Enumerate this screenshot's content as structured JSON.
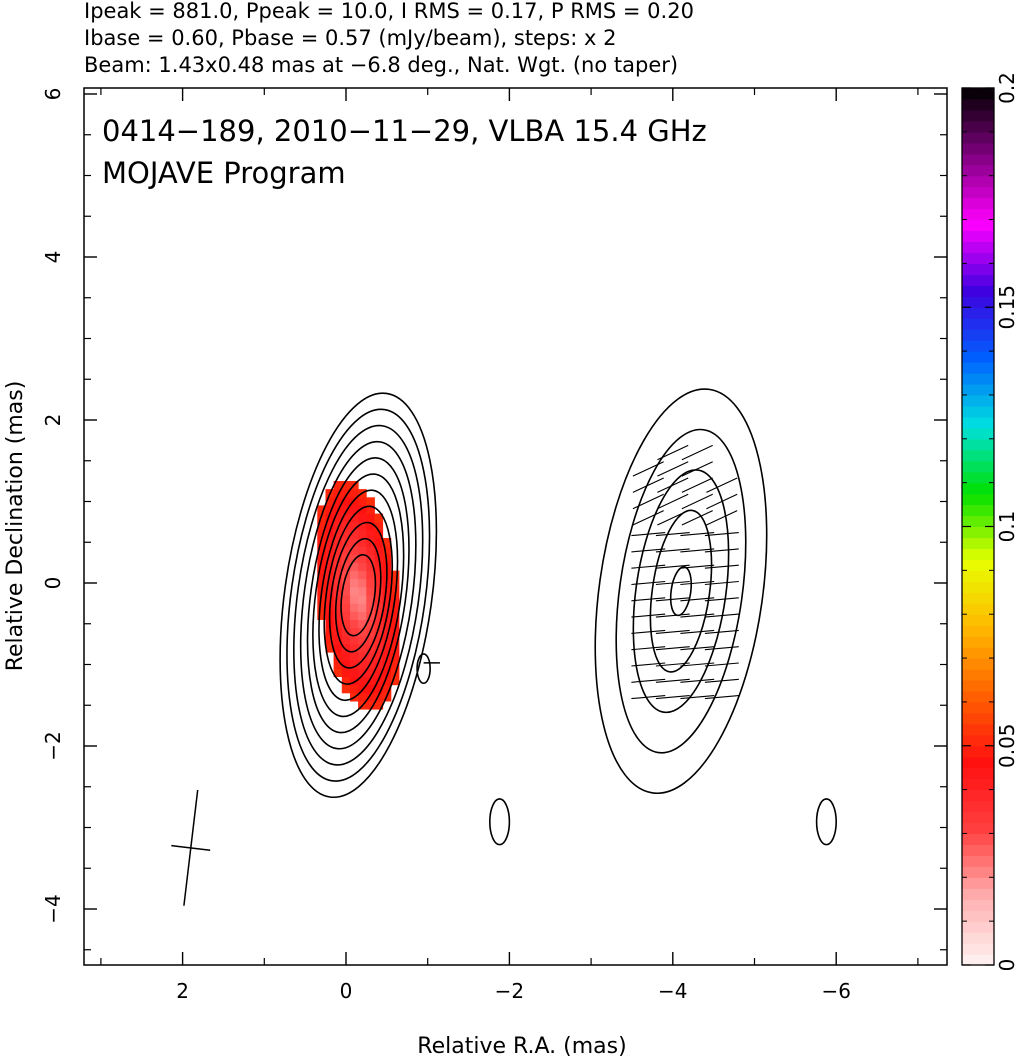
{
  "header": {
    "line1": "Ipeak = 881.0, Ppeak = 10.0, I RMS = 0.17, P RMS = 0.20",
    "line2": "Ibase = 0.60, Pbase = 0.57 (mJy/beam), steps: x 2",
    "line3": "Beam: 1.43x0.48 mas at −6.8 deg., Nat. Wgt. (no taper)"
  },
  "chart_data": {
    "type": "heatmap",
    "title": "0414−189, 2010−11−29, VLBA 15.4 GHz",
    "subtitle": "MOJAVE Program",
    "xlabel": "Relative R.A. (mas)",
    "ylabel": "Relative Declination (mas)",
    "xlim": [
      3.2,
      -7.5
    ],
    "ylim": [
      -4.7,
      6.1
    ],
    "x_ticks": [
      "2",
      "0",
      "−2",
      "−4",
      "−6"
    ],
    "x_tick_values": [
      2,
      0,
      -2,
      -4,
      -6
    ],
    "y_ticks": [
      "−4",
      "−2",
      "0",
      "2",
      "4",
      "6"
    ],
    "y_tick_values": [
      -4,
      -2,
      0,
      2,
      4,
      6
    ],
    "colorbar": {
      "min": 0,
      "max": 0.2,
      "ticks": [
        "0",
        "0.05",
        "0.1",
        "0.15",
        "0.2"
      ],
      "tick_values": [
        0,
        0.05,
        0.1,
        0.15,
        0.2
      ],
      "colors": [
        "#fff4f4",
        "#ffb0b0",
        "#ff4040",
        "#ff1010",
        "#ff6000",
        "#ffb800",
        "#e8ff00",
        "#00e000",
        "#00e0e0",
        "#0060ff",
        "#4000e0",
        "#ff00ff",
        "#800080",
        "#000000"
      ]
    },
    "core": {
      "center_x": -0.15,
      "center_y": -0.15,
      "contour_semi_axes": [
        [
          0.2,
          0.5
        ],
        [
          0.26,
          0.7
        ],
        [
          0.33,
          0.9
        ],
        [
          0.39,
          1.1
        ],
        [
          0.45,
          1.3
        ],
        [
          0.52,
          1.5
        ],
        [
          0.58,
          1.7
        ],
        [
          0.66,
          1.9
        ],
        [
          0.74,
          2.1
        ],
        [
          0.82,
          2.3
        ],
        [
          0.9,
          2.5
        ]
      ],
      "contour_tilt_deg": 8
    },
    "polarized_panel": {
      "center_x": -4.1,
      "center_y": -0.1,
      "contour_semi_axes": [
        [
          0.12,
          0.3
        ],
        [
          0.35,
          1.0
        ],
        [
          0.55,
          1.5
        ],
        [
          0.75,
          2.0
        ],
        [
          1.0,
          2.5
        ]
      ]
    },
    "beam": {
      "major_mas": 1.43,
      "minor_mas": 0.48,
      "pa_deg": -6.8,
      "center_x": 1.9,
      "center_y": -3.25
    },
    "small_components": [
      {
        "x": -1.88,
        "y": -2.93,
        "a": 0.12,
        "b": 0.28
      },
      {
        "x": -5.88,
        "y": -2.93,
        "a": 0.12,
        "b": 0.28
      },
      {
        "x": -0.95,
        "y": -1.05,
        "a": 0.08,
        "b": 0.18
      }
    ]
  }
}
